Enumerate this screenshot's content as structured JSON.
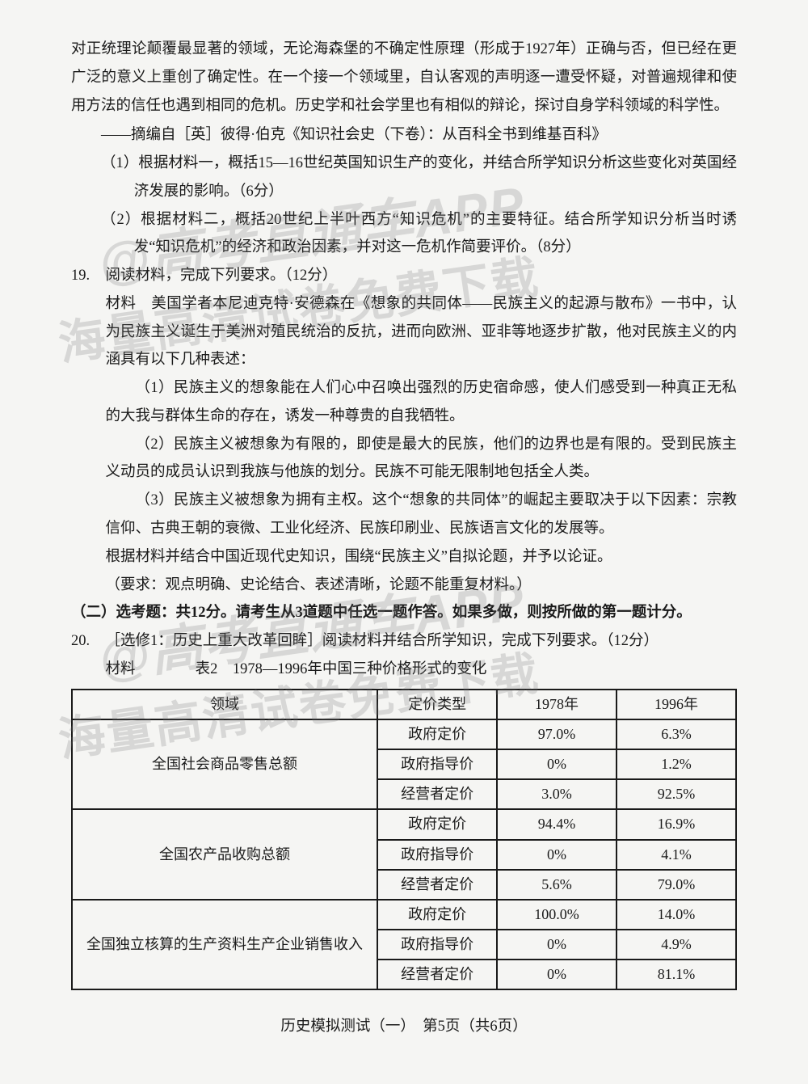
{
  "intro": {
    "p1": "对正统理论颠覆最显著的领域，无论海森堡的不确定性原理（形成于1927年）正确与否，但已经在更广泛的意义上重创了确定性。在一个接一个领域里，自认客观的声明逐一遭受怀疑，对普遍规律和使用方法的信任也遇到相同的危机。历史学和社会学里也有相似的辩论，探讨自身学科领域的科学性。",
    "source": "——摘编自［英］彼得·伯克《知识社会史（下卷）：从百科全书到维基百科》",
    "sub1": "（1）根据材料一，概括15—16世纪英国知识生产的变化，并结合所学知识分析这些变化对英国经济发展的影响。（6分）",
    "sub2": "（2）根据材料二，概括20世纪上半叶西方“知识危机”的主要特征。结合所学知识分析当时诱发“知识危机”的经济和政治因素，并对这一危机作简要评价。（8分）"
  },
  "q19": {
    "head": "阅读材料，完成下列要求。（12分）",
    "num": "19.",
    "mat_label": "材料　美国学者本尼迪克特·安德森在《想象的共同体——民族主义的起源与散布》一书中，认为民族主义诞生于美洲对殖民统治的反抗，进而向欧洲、亚非等地逐步扩散，他对民族主义的内涵具有以下几种表述：",
    "m1": "（1）民族主义的想象能在人们心中召唤出强烈的历史宿命感，使人们感受到一种真正无私的大我与群体生命的存在，诱发一种尊贵的自我牺牲。",
    "m2": "（2）民族主义被想象为有限的，即使是最大的民族，他们的边界也是有限的。受到民族主义动员的成员认识到我族与他族的划分。民族不可能无限制地包括全人类。",
    "m3": "（3）民族主义被想象为拥有主权。这个“想象的共同体”的崛起主要取决于以下因素：宗教信仰、古典王朝的衰微、工业化经济、民族印刷业、民族语言文化的发展等。",
    "req1": "根据材料并结合中国近现代史知识，围绕“民族主义”自拟论题，并予以论证。",
    "req2": "（要求：观点明确、史论结合、表述清晰，论题不能重复材料。）"
  },
  "section2": {
    "label": "（二）",
    "text": "选考题：共12分。请考生从3道题中任选一题作答。如果多做，则按所做的第一题计分。"
  },
  "q20": {
    "num": "20.",
    "head": "［选修1：历史上重大改革回眸］阅读材料并结合所学知识，完成下列要求。（12分）",
    "mat": "材料",
    "table_title": "表2　1978—1996年中国三种价格形式的变化",
    "headers": [
      "领域",
      "定价类型",
      "1978年",
      "1996年"
    ],
    "rowgroups": [
      {
        "domain": "全国社会商品零售总额",
        "rows": [
          [
            "政府定价",
            "97.0%",
            "6.3%"
          ],
          [
            "政府指导价",
            "0%",
            "1.2%"
          ],
          [
            "经营者定价",
            "3.0%",
            "92.5%"
          ]
        ]
      },
      {
        "domain": "全国农产品收购总额",
        "rows": [
          [
            "政府定价",
            "94.4%",
            "16.9%"
          ],
          [
            "政府指导价",
            "0%",
            "4.1%"
          ],
          [
            "经营者定价",
            "5.6%",
            "79.0%"
          ]
        ]
      },
      {
        "domain": "全国独立核算的生产资料生产企业销售收入",
        "rows": [
          [
            "政府定价",
            "100.0%",
            "14.0%"
          ],
          [
            "政府指导价",
            "0%",
            "4.9%"
          ],
          [
            "经营者定价",
            "0%",
            "81.1%"
          ]
        ]
      }
    ]
  },
  "footer": "历史模拟测试（一）　第5页（共6页）",
  "watermarks": {
    "w1": "@高考直通车APP",
    "w2": "海量高清试卷免费下载",
    "w3": "@高考直通车APP",
    "w4": "海量高清试卷免费下载"
  },
  "style": {
    "page_bg": "#f5f5f3",
    "body_bg": "#b5b5b5",
    "text_color": "#1a1a1a",
    "border_color": "#1a1a1a",
    "wm_color": "rgba(120,120,120,0.24)",
    "font_size_body": 18.5,
    "font_size_wm": 64,
    "col_widths": [
      "46%",
      "18%",
      "18%",
      "18%"
    ]
  }
}
